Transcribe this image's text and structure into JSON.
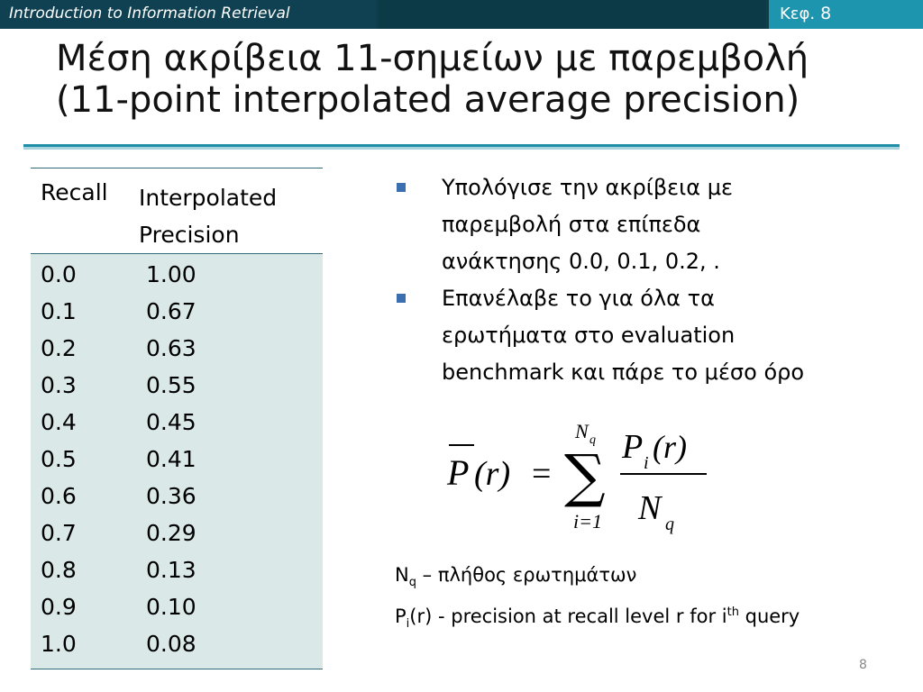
{
  "header": {
    "course": "Introduction to Information Retrieval",
    "chapter_label": "Κεφ.",
    "chapter_number": "8"
  },
  "slide": {
    "title_line1": "Μέση ακρίβεια 11-σημείων με παρεμβολή",
    "title_line2": "(11-point interpolated average precision)"
  },
  "table": {
    "headers": {
      "recall": "Recall",
      "precision_line1": "Interpolated",
      "precision_line2": "Precision"
    },
    "rows": [
      {
        "recall": "0.0",
        "precision": "1.00"
      },
      {
        "recall": "0.1",
        "precision": "0.67"
      },
      {
        "recall": "0.2",
        "precision": "0.63"
      },
      {
        "recall": "0.3",
        "precision": "0.55"
      },
      {
        "recall": "0.4",
        "precision": "0.45"
      },
      {
        "recall": "0.5",
        "precision": "0.41"
      },
      {
        "recall": "0.6",
        "precision": "0.36"
      },
      {
        "recall": "0.7",
        "precision": "0.29"
      },
      {
        "recall": "0.8",
        "precision": "0.13"
      },
      {
        "recall": "0.9",
        "precision": "0.10"
      },
      {
        "recall": "1.0",
        "precision": "0.08"
      }
    ]
  },
  "bullets": [
    {
      "line1": "Υπολόγισε την ακρίβεια με",
      "line2": "παρεμβολή στα επίπεδα",
      "line3": "ανάκτησης 0.0, 0.1, 0.2, ."
    },
    {
      "line1": "Επανέλαβε το για όλα τα",
      "line2": "ερωτήματα στο evaluation",
      "line3": "benchmark και πάρε το μέσο όρο"
    }
  ],
  "formula": {
    "lhs": "P",
    "arg": "(r)",
    "equals": "=",
    "sigma": "∑",
    "upper_base": "N",
    "upper_sub": "q",
    "lower": "i=1",
    "num_base": "P",
    "num_sub": "i",
    "num_arg": "(r)",
    "den_base": "N",
    "den_sub": "q"
  },
  "notes": {
    "line1_base": "N",
    "line1_sub": "q",
    "line1_text": " – πλήθος ερωτημάτων",
    "line2_base": "P",
    "line2_sub": "i",
    "line2_text": "(r) - precision at recall level r for i",
    "line2_sup": "th",
    "line2_tail": " query"
  },
  "page_number": "8",
  "colors": {
    "header_bar": "#0f3d4a",
    "header_accent": "#1e95ae",
    "rule": "#1f8fa8",
    "table_fill": "#dae8e8",
    "bullet": "#3b6fb0"
  }
}
